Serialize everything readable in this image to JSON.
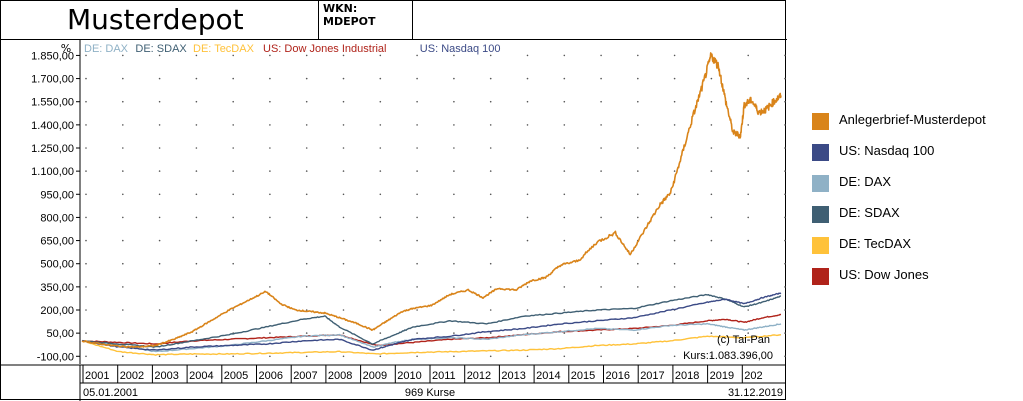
{
  "header": {
    "title": "Musterdepot",
    "wkn": "WKN: MDEPOT"
  },
  "chart_data": {
    "type": "line",
    "ylabel": "%",
    "ylim": [
      -150,
      1950
    ],
    "yticks": [
      1850,
      1700,
      1550,
      1400,
      1250,
      1100,
      950,
      800,
      650,
      500,
      350,
      200,
      50,
      -100
    ],
    "ytick_labels": [
      "1.850,00",
      "1.700,00",
      "1.550,00",
      "1.400,00",
      "1.250,00",
      "1.100,00",
      "950,00",
      "800,00",
      "650,00",
      "500,00",
      "350,00",
      "200,00",
      "50,00",
      "-100,00"
    ],
    "x_labels": [
      "2001",
      "2002",
      "2003",
      "2004",
      "2005",
      "2006",
      "2007",
      "2008",
      "2009",
      "2010",
      "2011",
      "2012",
      "2013",
      "2014",
      "2015",
      "2016",
      "2017",
      "2018",
      "2019",
      "202"
    ],
    "xlim": [
      2001,
      2020
    ],
    "grid": true,
    "legend_top": [
      {
        "label": "DE: DAX",
        "color": "#8fb1c6"
      },
      {
        "label": "DE: SDAX",
        "color": "#3f5f73"
      },
      {
        "label": "DE: TecDAX",
        "color": "#ffc23a"
      },
      {
        "label": "US: Dow Jones Industrial",
        "color": "#b0231a"
      },
      {
        "label": "US: Nasdaq 100",
        "color": "#3b4a86"
      }
    ],
    "legend_right": [
      {
        "label": "Anlegerbrief-Musterdepot",
        "color": "#d9841a"
      },
      {
        "label": "US: Nasdaq 100",
        "color": "#3b4a86"
      },
      {
        "label": "DE: DAX",
        "color": "#8fb1c6"
      },
      {
        "label": "DE: SDAX",
        "color": "#3f5f73"
      },
      {
        "label": "DE: TecDAX",
        "color": "#ffc23a"
      },
      {
        "label": "US: Dow Jones",
        "color": "#b0231a"
      }
    ],
    "series": [
      {
        "name": "Anlegerbrief-Musterdepot",
        "color": "#d9841a",
        "x": [
          2001.0,
          2001.5,
          2002.0,
          2002.5,
          2003.0,
          2003.5,
          2004.0,
          2004.5,
          2005.0,
          2005.5,
          2006.0,
          2006.4,
          2006.8,
          2007.2,
          2007.6,
          2008.0,
          2008.5,
          2008.9,
          2009.3,
          2009.7,
          2010.0,
          2010.5,
          2011.0,
          2011.5,
          2011.9,
          2012.3,
          2012.8,
          2013.2,
          2013.6,
          2014.0,
          2014.5,
          2015.0,
          2015.5,
          2015.9,
          2016.3,
          2016.7,
          2017.0,
          2017.3,
          2017.6,
          2017.9,
          2018.1,
          2018.3,
          2018.5,
          2018.7,
          2018.9,
          2019.0,
          2019.2,
          2019.4,
          2019.6,
          2019.8,
          2020.0
        ],
        "y": [
          0,
          -20,
          -35,
          -40,
          -30,
          10,
          60,
          130,
          200,
          260,
          320,
          240,
          200,
          190,
          180,
          150,
          110,
          70,
          130,
          190,
          210,
          230,
          300,
          330,
          280,
          340,
          330,
          390,
          410,
          490,
          520,
          640,
          700,
          560,
          720,
          880,
          960,
          1200,
          1450,
          1680,
          1850,
          1780,
          1550,
          1350,
          1330,
          1530,
          1560,
          1480,
          1500,
          1550,
          1590
        ]
      },
      {
        "name": "US: Nasdaq 100",
        "color": "#3b4a86",
        "x": [
          2001.0,
          2002.0,
          2003.0,
          2004.0,
          2005.0,
          2006.0,
          2007.0,
          2008.0,
          2008.9,
          2009.5,
          2010.0,
          2011.0,
          2012.0,
          2013.0,
          2014.0,
          2015.0,
          2016.0,
          2017.0,
          2018.0,
          2018.5,
          2019.0,
          2019.5,
          2020.0
        ],
        "y": [
          0,
          -40,
          -60,
          -40,
          -30,
          -20,
          0,
          10,
          -60,
          -20,
          10,
          30,
          60,
          80,
          110,
          130,
          150,
          200,
          250,
          270,
          240,
          280,
          310
        ]
      },
      {
        "name": "DE: DAX",
        "color": "#8fb1c6",
        "x": [
          2001.0,
          2002.0,
          2003.0,
          2004.0,
          2005.0,
          2006.0,
          2007.0,
          2008.0,
          2008.9,
          2009.5,
          2010.0,
          2011.0,
          2012.0,
          2013.0,
          2014.0,
          2015.0,
          2016.0,
          2017.0,
          2018.0,
          2018.5,
          2019.0,
          2019.5,
          2020.0
        ],
        "y": [
          0,
          -30,
          -70,
          -50,
          -30,
          0,
          30,
          40,
          -40,
          -10,
          10,
          20,
          10,
          40,
          60,
          80,
          70,
          100,
          110,
          90,
          70,
          90,
          110
        ]
      },
      {
        "name": "DE: SDAX",
        "color": "#3f5f73",
        "x": [
          2001.0,
          2002.0,
          2003.0,
          2004.0,
          2005.0,
          2006.0,
          2007.0,
          2007.6,
          2008.0,
          2008.9,
          2009.5,
          2010.0,
          2011.0,
          2012.0,
          2013.0,
          2014.0,
          2015.0,
          2016.0,
          2017.0,
          2018.0,
          2018.5,
          2019.0,
          2019.5,
          2020.0
        ],
        "y": [
          0,
          -20,
          -40,
          0,
          40,
          90,
          140,
          160,
          90,
          -20,
          40,
          90,
          130,
          110,
          160,
          180,
          200,
          210,
          260,
          300,
          270,
          220,
          250,
          290
        ]
      },
      {
        "name": "DE: TecDAX",
        "color": "#ffc23a",
        "x": [
          2001.0,
          2002.0,
          2003.0,
          2004.0,
          2005.0,
          2006.0,
          2007.0,
          2008.0,
          2009.0,
          2010.0,
          2011.0,
          2012.0,
          2013.0,
          2014.0,
          2015.0,
          2016.0,
          2017.0,
          2018.0,
          2019.0,
          2020.0
        ],
        "y": [
          0,
          -70,
          -90,
          -85,
          -85,
          -80,
          -75,
          -70,
          -85,
          -75,
          -70,
          -65,
          -60,
          -50,
          -30,
          -20,
          0,
          30,
          20,
          40
        ]
      },
      {
        "name": "US: Dow Jones",
        "color": "#b0231a",
        "x": [
          2001.0,
          2002.0,
          2003.0,
          2004.0,
          2005.0,
          2006.0,
          2007.0,
          2008.0,
          2009.0,
          2010.0,
          2011.0,
          2012.0,
          2013.0,
          2014.0,
          2015.0,
          2016.0,
          2017.0,
          2018.0,
          2018.5,
          2019.0,
          2019.5,
          2020.0
        ],
        "y": [
          0,
          -10,
          -20,
          0,
          10,
          20,
          30,
          40,
          -30,
          -10,
          10,
          20,
          40,
          60,
          70,
          80,
          100,
          130,
          140,
          120,
          150,
          170
        ]
      }
    ],
    "annotations": {
      "copyright": "(c) Tai-Pan",
      "kurs": "Kurs:1.083.396,00"
    },
    "footer": {
      "start_date": "05.01.2001",
      "count": "969 Kurse",
      "end_date": "31.12.2019"
    }
  }
}
